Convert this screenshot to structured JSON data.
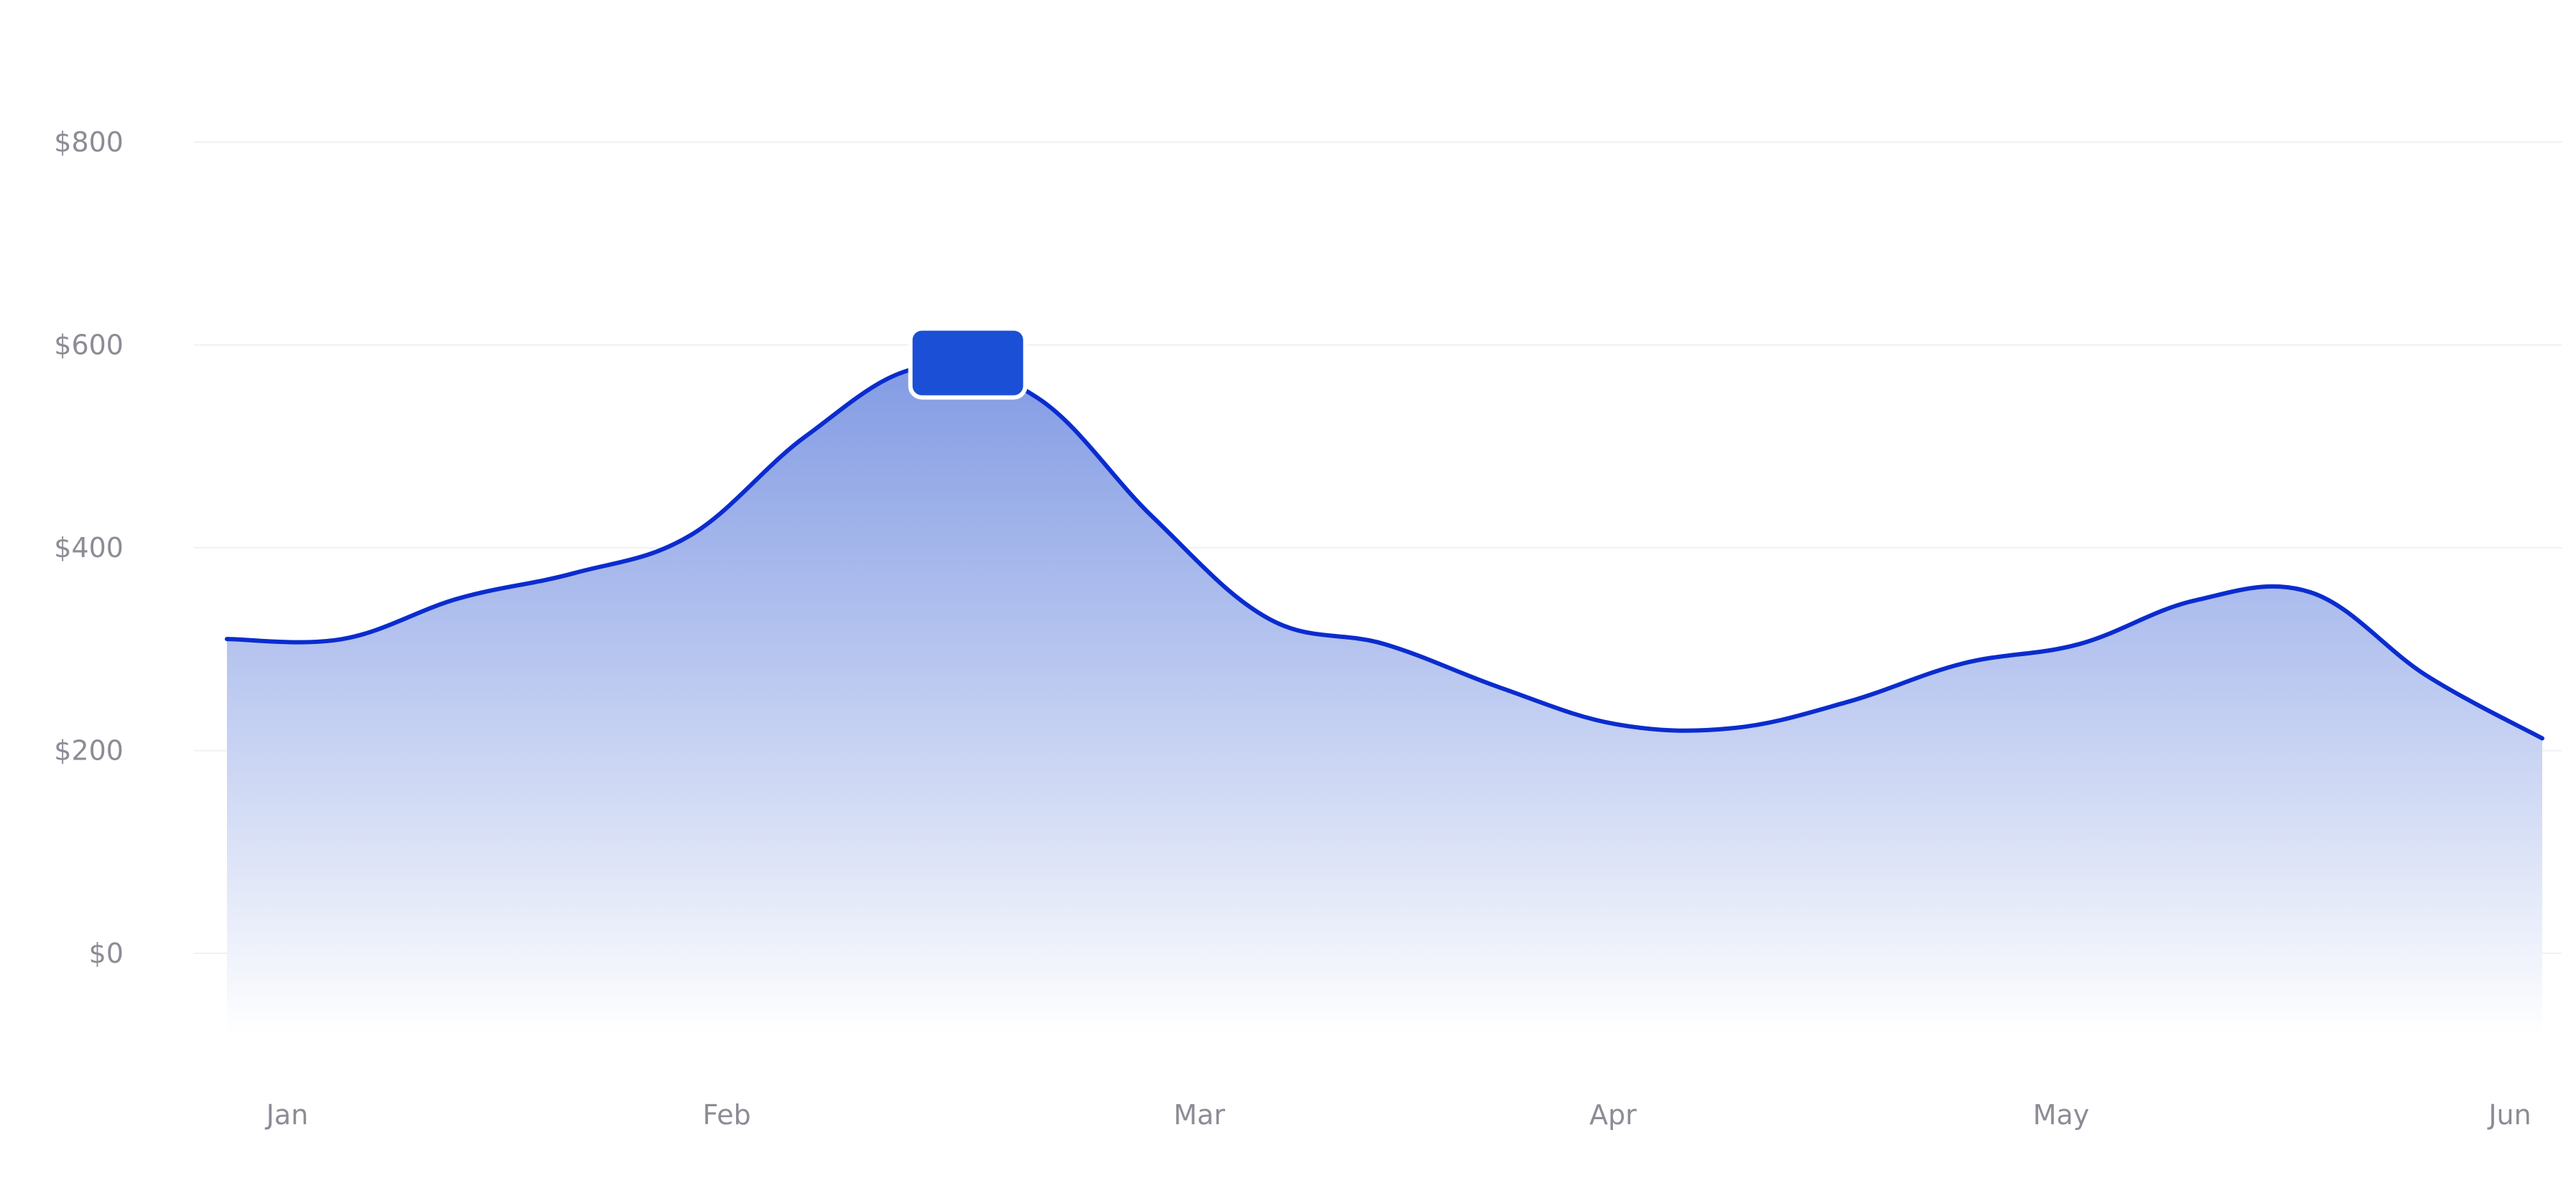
{
  "chart_data": {
    "type": "area",
    "title": "",
    "xlabel": "",
    "ylabel": "",
    "x": [
      0,
      0.25,
      0.5,
      0.75,
      1,
      1.25,
      1.5,
      1.75,
      2,
      2.25,
      2.5,
      2.75,
      3,
      3.25,
      3.5,
      3.75,
      4,
      4.25,
      4.5,
      4.75,
      5
    ],
    "values": [
      310,
      310,
      350,
      375,
      412,
      510,
      578,
      548,
      430,
      330,
      305,
      262,
      226,
      222,
      248,
      286,
      305,
      348,
      356,
      274,
      212
    ],
    "x_tick_labels": [
      "Jan",
      "Feb",
      "Mar",
      "Apr",
      "May",
      "Jun"
    ],
    "y_ticks": [
      0,
      200,
      400,
      600,
      800
    ],
    "y_tick_labels": [
      "$0",
      "$200",
      "$400",
      "$600",
      "$800"
    ],
    "ylim": [
      -80,
      800
    ],
    "grid": true,
    "highlighted_point": {
      "x": 1.6,
      "value": 578
    },
    "colors": {
      "line": "#0a2ccf",
      "fill_top": "#7c96e2",
      "fill_bottom": "#ffffff",
      "marker": "#1a4fd6",
      "grid": "#f1f1f4",
      "tick_text": "#8c8c96"
    }
  }
}
